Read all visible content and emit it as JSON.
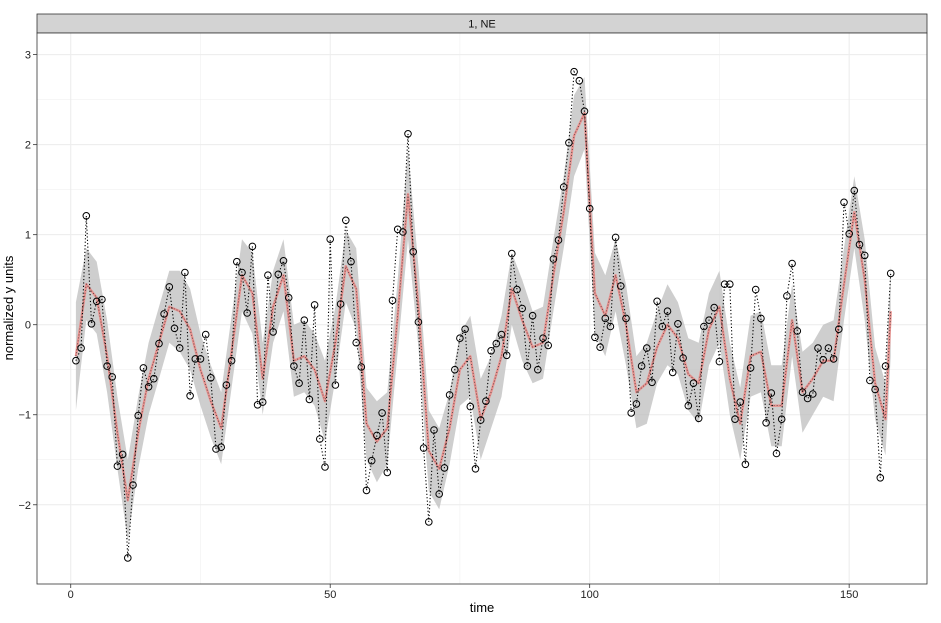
{
  "chart_data": {
    "type": "line",
    "facet_label": "1, NE",
    "xlabel": "time",
    "ylabel": "normalized y units",
    "xlim": [
      -6.5,
      165
    ],
    "ylim": [
      -2.88,
      3.24
    ],
    "x_ticks": [
      0,
      50,
      100,
      150
    ],
    "y_ticks": [
      -2,
      -1,
      0,
      1,
      2,
      3
    ],
    "y_tick_labels": [
      "−2",
      "−1",
      "0",
      "1",
      "2",
      "3"
    ],
    "grid": true,
    "legend": "none",
    "colors": {
      "observed": "#000000",
      "fitted": "#e8928f",
      "ribbon": "#bdbdbd",
      "strip": "#d3d3d3",
      "panel_border": "#333333",
      "grid": "#ececec"
    },
    "series": [
      {
        "kind": "observed",
        "style": "dotted line with open circle markers",
        "x": [
          1,
          2,
          3,
          4,
          5,
          6,
          7,
          8,
          9,
          10,
          11,
          12,
          13,
          14,
          15,
          16,
          17,
          18,
          19,
          20,
          21,
          22,
          23,
          24,
          25,
          26,
          27,
          28,
          29,
          30,
          31,
          32,
          33,
          34,
          35,
          36,
          37,
          38,
          39,
          40,
          41,
          42,
          43,
          44,
          45,
          46,
          47,
          48,
          49,
          50,
          51,
          52,
          53,
          54,
          55,
          56,
          57,
          58,
          59,
          60,
          61,
          62,
          63,
          64,
          65,
          66,
          67,
          68,
          69,
          70,
          71,
          72,
          73,
          74,
          75,
          76,
          77,
          78,
          79,
          80,
          81,
          82,
          83,
          84,
          85,
          86,
          87,
          88,
          89,
          90,
          91,
          92,
          93,
          94,
          95,
          96,
          97,
          98,
          99,
          100,
          101,
          102,
          103,
          104,
          105,
          106,
          107,
          108,
          109,
          110,
          111,
          112,
          113,
          114,
          115,
          116,
          117,
          118,
          119,
          120,
          121,
          122,
          123,
          124,
          125,
          126,
          127,
          128,
          129,
          130,
          131,
          132,
          133,
          134,
          135,
          136,
          137,
          138,
          139,
          140,
          141,
          142,
          143,
          144,
          145,
          146,
          147,
          148,
          149,
          150,
          151,
          152,
          153,
          154,
          155,
          156,
          157,
          158
        ],
        "y": [
          -0.4,
          -0.26,
          1.21,
          0.01,
          0.26,
          0.28,
          -0.46,
          -0.58,
          -1.57,
          -1.44,
          -2.59,
          -1.78,
          -1.01,
          -0.48,
          -0.69,
          -0.6,
          -0.21,
          0.12,
          0.42,
          -0.04,
          -0.26,
          0.58,
          -0.79,
          -0.38,
          -0.38,
          -0.11,
          -0.59,
          -1.38,
          -1.36,
          -0.67,
          -0.4,
          0.7,
          0.58,
          0.13,
          0.87,
          -0.89,
          -0.86,
          0.55,
          -0.08,
          0.56,
          0.71,
          0.3,
          -0.46,
          -0.65,
          0.05,
          -0.83,
          0.22,
          -1.27,
          -1.58,
          0.95,
          -0.67,
          0.23,
          1.16,
          0.7,
          -0.2,
          -0.47,
          -1.84,
          -1.51,
          -1.23,
          -0.98,
          -1.64,
          0.27,
          1.06,
          1.03,
          2.12,
          0.81,
          0.03,
          -1.37,
          -2.19,
          -1.17,
          -1.88,
          -1.59,
          -0.78,
          -0.5,
          -0.15,
          -0.05,
          -0.91,
          -1.6,
          -1.06,
          -0.85,
          -0.29,
          -0.21,
          -0.11,
          -0.34,
          0.79,
          0.39,
          0.18,
          -0.46,
          0.1,
          -0.5,
          -0.15,
          -0.23,
          0.73,
          0.94,
          1.53,
          2.02,
          2.81,
          2.71,
          2.37,
          1.29,
          -0.14,
          -0.25,
          0.07,
          -0.02,
          0.97,
          0.43,
          0.07,
          -0.98,
          -0.88,
          -0.46,
          -0.26,
          -0.64,
          0.26,
          -0.02,
          0.15,
          -0.53,
          0.01,
          -0.37,
          -0.9,
          -0.65,
          -1.04,
          -0.02,
          0.05,
          0.19,
          -0.41,
          0.45,
          0.45,
          -1.05,
          -0.86,
          -1.55,
          -0.48,
          0.39,
          0.07,
          -1.09,
          -0.76,
          -1.43,
          -1.05,
          0.32,
          0.68,
          -0.07,
          -0.75,
          -0.82,
          -0.77,
          -0.26,
          -0.39,
          -0.26,
          -0.38,
          -0.05,
          1.36,
          1.01,
          1.49,
          0.89,
          0.77,
          -0.62,
          -0.72,
          -1.7,
          -0.46,
          0.57
        ]
      },
      {
        "kind": "fitted",
        "style": "red line with dotted black overlay",
        "x": [
          1,
          3,
          5,
          7,
          9,
          11,
          13,
          15,
          17,
          19,
          21,
          23,
          25,
          27,
          29,
          31,
          33,
          35,
          37,
          39,
          41,
          43,
          45,
          47,
          49,
          51,
          53,
          55,
          57,
          59,
          61,
          63,
          65,
          67,
          69,
          71,
          73,
          75,
          77,
          79,
          81,
          83,
          85,
          87,
          89,
          91,
          93,
          95,
          97,
          99,
          101,
          103,
          105,
          107,
          109,
          111,
          113,
          115,
          117,
          119,
          121,
          123,
          125,
          127,
          129,
          131,
          133,
          135,
          137,
          139,
          141,
          143,
          145,
          147,
          149,
          151,
          153,
          155,
          157,
          158
        ],
        "y": [
          -0.35,
          0.45,
          0.3,
          -0.35,
          -1.2,
          -1.95,
          -1.2,
          -0.6,
          -0.2,
          0.2,
          0.15,
          -0.05,
          -0.5,
          -0.85,
          -1.15,
          -0.3,
          0.55,
          0.35,
          -0.6,
          0.2,
          0.55,
          -0.4,
          -0.35,
          -0.5,
          -0.85,
          -0.2,
          0.65,
          0.4,
          -1.1,
          -1.3,
          -1.15,
          0.1,
          1.45,
          0.2,
          -1.4,
          -1.6,
          -1.15,
          -0.5,
          -0.35,
          -1.05,
          -0.75,
          -0.35,
          0.4,
          0.05,
          -0.25,
          -0.2,
          0.55,
          1.25,
          2.1,
          2.35,
          0.35,
          0.1,
          0.55,
          0.0,
          -0.75,
          -0.65,
          -0.25,
          0.0,
          -0.15,
          -0.55,
          -0.65,
          -0.05,
          0.2,
          -0.6,
          -1.1,
          -0.35,
          -0.3,
          -0.9,
          -0.9,
          0.05,
          -0.75,
          -0.6,
          -0.4,
          -0.4,
          0.45,
          1.25,
          0.5,
          -0.65,
          -1.05,
          0.15
        ]
      },
      {
        "kind": "ribbon",
        "style": "grey confidence band",
        "x": [
          1,
          3,
          5,
          7,
          9,
          11,
          13,
          15,
          17,
          19,
          21,
          23,
          25,
          27,
          29,
          31,
          33,
          35,
          37,
          39,
          41,
          43,
          45,
          47,
          49,
          51,
          53,
          55,
          57,
          59,
          61,
          63,
          65,
          67,
          69,
          71,
          73,
          75,
          77,
          79,
          81,
          83,
          85,
          87,
          89,
          91,
          93,
          95,
          97,
          99,
          101,
          103,
          105,
          107,
          109,
          111,
          113,
          115,
          117,
          119,
          121,
          123,
          125,
          127,
          129,
          131,
          133,
          135,
          137,
          139,
          141,
          143,
          145,
          147,
          149,
          151,
          153,
          155,
          157,
          158
        ],
        "lower": [
          -0.95,
          0.05,
          -0.1,
          -0.75,
          -1.6,
          -2.4,
          -1.6,
          -1.0,
          -0.6,
          -0.2,
          -0.3,
          -0.5,
          -0.9,
          -1.25,
          -1.55,
          -0.7,
          0.15,
          -0.1,
          -1.0,
          -0.2,
          0.15,
          -0.8,
          -0.75,
          -0.9,
          -1.3,
          -0.6,
          0.25,
          -0.05,
          -1.5,
          -1.75,
          -1.55,
          -0.3,
          0.95,
          -0.25,
          -1.85,
          -2.05,
          -1.55,
          -0.9,
          -0.8,
          -1.5,
          -1.15,
          -0.8,
          0.0,
          -0.4,
          -0.65,
          -0.6,
          0.15,
          0.85,
          1.65,
          1.95,
          -0.1,
          -0.35,
          0.15,
          -0.45,
          -1.15,
          -1.1,
          -0.65,
          -0.45,
          -0.55,
          -0.95,
          -1.1,
          -0.45,
          -0.2,
          -1.0,
          -1.5,
          -0.8,
          -0.75,
          -1.35,
          -1.35,
          -0.35,
          -1.2,
          -1.0,
          -0.8,
          -0.85,
          0.05,
          0.85,
          0.05,
          -1.05,
          -1.45,
          -0.35
        ],
        "upper": [
          0.25,
          0.85,
          0.7,
          0.05,
          -0.8,
          -1.5,
          -0.8,
          -0.2,
          0.2,
          0.6,
          0.6,
          0.4,
          -0.1,
          -0.45,
          -0.75,
          0.1,
          0.95,
          0.8,
          -0.2,
          0.6,
          0.95,
          0.0,
          0.05,
          -0.1,
          -0.4,
          0.2,
          1.05,
          0.85,
          -0.7,
          -0.85,
          -0.75,
          0.5,
          1.95,
          0.65,
          -0.95,
          -1.15,
          -0.75,
          -0.1,
          0.1,
          -0.6,
          -0.35,
          0.1,
          0.8,
          0.5,
          0.15,
          0.2,
          0.95,
          1.65,
          2.55,
          2.75,
          0.8,
          0.55,
          0.95,
          0.45,
          -0.35,
          -0.2,
          0.15,
          0.45,
          0.25,
          -0.15,
          -0.2,
          0.35,
          0.6,
          -0.2,
          -0.7,
          0.1,
          0.15,
          -0.45,
          -0.45,
          0.45,
          -0.3,
          -0.2,
          0.0,
          0.05,
          0.85,
          1.65,
          0.95,
          -0.25,
          -0.65,
          0.65
        ]
      }
    ]
  }
}
